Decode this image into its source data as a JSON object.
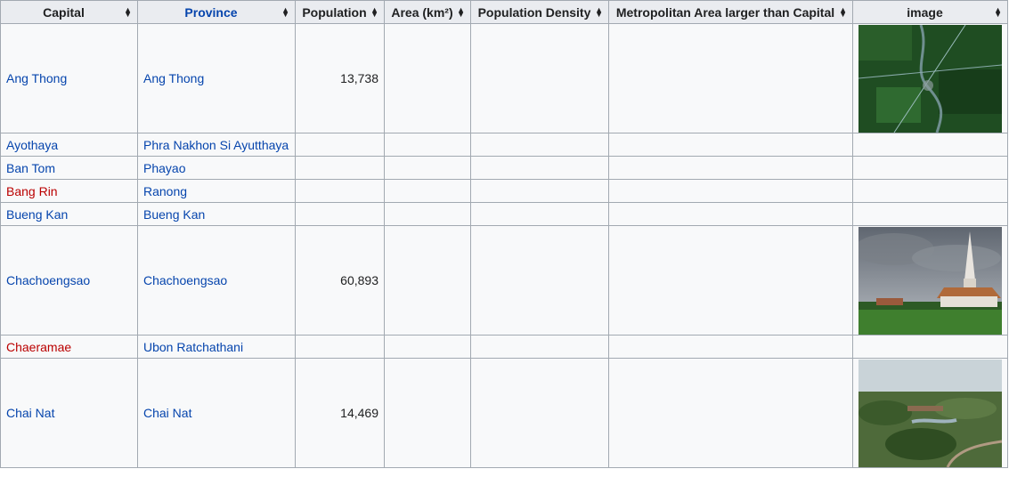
{
  "table": {
    "headers": [
      {
        "label": "Capital"
      },
      {
        "label": "Province"
      },
      {
        "label": "Population"
      },
      {
        "label": "Area (km²)"
      },
      {
        "label": "Population Density"
      },
      {
        "label": "Metropolitan Area larger than Capital"
      },
      {
        "label": "image"
      }
    ],
    "rows": [
      {
        "capital": "Ang Thong",
        "province": "Ang Thong",
        "population": "13,738",
        "area": "",
        "density": "",
        "metro": "",
        "image": "satellite-map-image"
      },
      {
        "capital": "Ayothaya",
        "province": "Phra Nakhon Si Ayutthaya",
        "population": "",
        "area": "",
        "density": "",
        "metro": "",
        "image": ""
      },
      {
        "capital": "Ban Tom",
        "province": "Phayao",
        "population": "",
        "area": "",
        "density": "",
        "metro": "",
        "image": ""
      },
      {
        "capital": "Bang Rin",
        "province": "Ranong",
        "population": "",
        "area": "",
        "density": "",
        "metro": "",
        "image": ""
      },
      {
        "capital": "Bueng Kan",
        "province": "Bueng Kan",
        "population": "",
        "area": "",
        "density": "",
        "metro": "",
        "image": ""
      },
      {
        "capital": "Chachoengsao",
        "province": "Chachoengsao",
        "population": "60,893",
        "area": "",
        "density": "",
        "metro": "",
        "image": "temple-photo"
      },
      {
        "capital": "Chaeramae",
        "province": "Ubon Ratchathani",
        "population": "",
        "area": "",
        "density": "",
        "metro": "",
        "image": ""
      },
      {
        "capital": "Chai Nat",
        "province": "Chai Nat",
        "population": "14,469",
        "area": "",
        "density": "",
        "metro": "",
        "image": "park-aerial-photo"
      }
    ]
  },
  "colors": {
    "link": "#0645ad",
    "redlink": "#ba0000",
    "header_bg": "#eaecf0",
    "cell_bg": "#f8f9fa",
    "border": "#a2a9b1"
  }
}
